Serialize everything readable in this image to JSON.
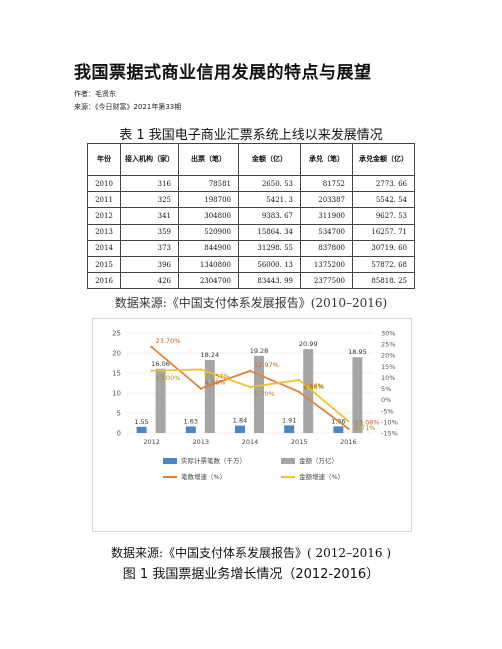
{
  "title": "我国票据式商业信用发展的特点与展望",
  "author": "作者：毛贤东",
  "source": "来源：《今日财富》2021年第33期",
  "table": {
    "caption": "表 1  我国电子商业汇票系统上线以来发展情况",
    "headers": [
      "年份",
      "接入机构（家）",
      "出票（笔）",
      "金额（亿）",
      "承兑（笔）",
      "承兑金额（亿）"
    ],
    "rows": [
      [
        "2010",
        "316",
        "78581",
        "2650. 53",
        "81752",
        "2773. 66"
      ],
      [
        "2011",
        "325",
        "198700",
        "5421. 3",
        "203387",
        "5542. 54"
      ],
      [
        "2012",
        "341",
        "304800",
        "9383. 67",
        "311900",
        "9627. 53"
      ],
      [
        "2013",
        "359",
        "520900",
        "15864. 34",
        "534700",
        "16257. 71"
      ],
      [
        "2014",
        "373",
        "844900",
        "31298. 55",
        "837800",
        "30719. 60"
      ],
      [
        "2015",
        "396",
        "1340800",
        "56000. 13",
        "1375200",
        "57872. 68"
      ],
      [
        "2016",
        "426",
        "2304700",
        "83443. 99",
        "2377500",
        "85818. 25"
      ]
    ],
    "source_note": "数据来源:《中国支付体系发展报告》(2010–2016)"
  },
  "chart_data": {
    "type": "bar",
    "categories": [
      "2012",
      "2013",
      "2014",
      "2015",
      "2016"
    ],
    "y_left_ticks": [
      "0",
      "5",
      "10",
      "15",
      "20",
      "25"
    ],
    "y_right_ticks": [
      "30%",
      "25%",
      "20%",
      "15%",
      "10%",
      "5%",
      "0%",
      "-5%",
      "-10%",
      "-15%"
    ],
    "ylim_left": [
      0,
      25
    ],
    "ylim_right": [
      -15,
      30
    ],
    "series": [
      {
        "name": "实际计票笔数（千万）",
        "kind": "bar",
        "axis": "left",
        "color": "#4a86c5",
        "values": [
          1.55,
          1.63,
          1.84,
          1.91,
          1.66
        ],
        "labels": [
          "1.55",
          "1.63",
          "1.84",
          "1.91",
          "1.66"
        ]
      },
      {
        "name": "金额（万亿）",
        "kind": "bar",
        "axis": "left",
        "color": "#a6a6a6",
        "values": [
          16.06,
          18.24,
          19.28,
          20.99,
          18.95
        ],
        "labels": [
          "16.06",
          "18.24",
          "19.28",
          "20.99",
          "18.95"
        ]
      },
      {
        "name": "笔数增速（%）",
        "kind": "line",
        "axis": "right",
        "color": "#e0823a",
        "values": [
          23.7,
          4.98,
          12.97,
          3.46,
          -13.08
        ],
        "labels": [
          "23.70%",
          "4.98%",
          "12.97%",
          "3.46%",
          "-13.08%"
        ]
      },
      {
        "name": "金额增速（%）",
        "kind": "line",
        "axis": "right",
        "color": "#f2c12e",
        "values": [
          13.0,
          13.57,
          5.7,
          8.86,
          -9.71
        ],
        "labels": [
          "13.00%",
          "13.57%",
          "5.70%",
          "8.86%",
          "-9.71%"
        ]
      }
    ],
    "legend_position": "bottom",
    "source_note": "数据来源:《中国支付体系发展报告》( 2012–2016 )",
    "caption": "图 1  我国票据业务增长情况（2012-2016）"
  }
}
